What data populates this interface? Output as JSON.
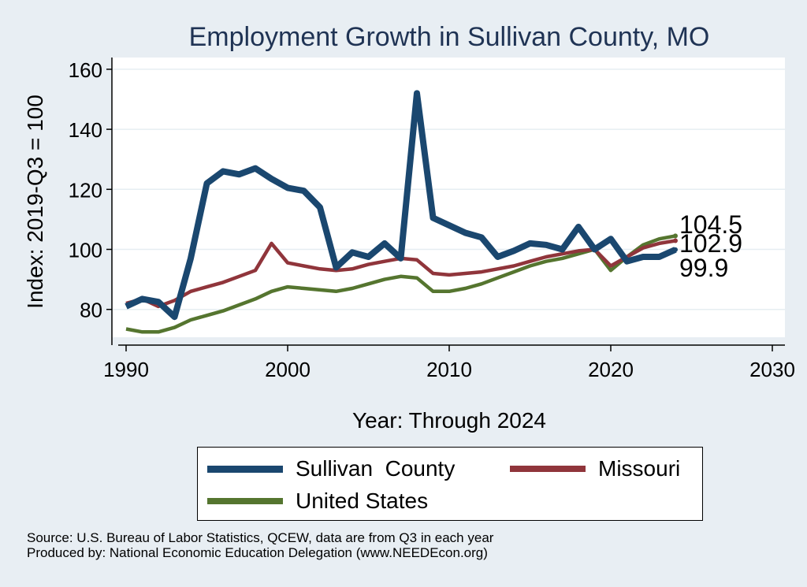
{
  "chart_data": {
    "type": "line",
    "title": "Employment Growth in Sullivan County, MO",
    "xlabel": "Year: Through 2024",
    "ylabel": "Index: 2019-Q3 = 100",
    "xlim": [
      1990,
      2030
    ],
    "ylim": [
      70,
      165
    ],
    "xticks": [
      1990,
      2000,
      2010,
      2020,
      2030
    ],
    "yticks": [
      80,
      100,
      120,
      140,
      160
    ],
    "x": [
      1990,
      1991,
      1992,
      1993,
      1994,
      1995,
      1996,
      1997,
      1998,
      1999,
      2000,
      2001,
      2002,
      2003,
      2004,
      2005,
      2006,
      2007,
      2008,
      2009,
      2010,
      2011,
      2012,
      2013,
      2014,
      2015,
      2016,
      2017,
      2018,
      2019,
      2020,
      2021,
      2022,
      2023,
      2024
    ],
    "series": [
      {
        "name": "Sullivan  County",
        "color": "#1a476f",
        "end_label": "99.9",
        "values": [
          81,
          83.5,
          82.5,
          77.5,
          97,
          122,
          126,
          125,
          127,
          123.5,
          120.5,
          119.5,
          114,
          94,
          99,
          97.5,
          102,
          97,
          152,
          110.5,
          108,
          105.5,
          104,
          97.5,
          99.5,
          102,
          101.5,
          100,
          107.5,
          100,
          103.5,
          96,
          97.5,
          97.5,
          99.9
        ]
      },
      {
        "name": "Missouri",
        "color": "#90353b",
        "end_label": "102.9",
        "values": [
          82,
          83.5,
          81,
          83,
          86,
          87.5,
          89,
          91,
          93,
          102,
          95.5,
          94.5,
          93.5,
          93,
          93.5,
          95,
          96,
          97,
          96.5,
          92,
          91.5,
          92,
          92.5,
          93.5,
          94.5,
          96,
          97.5,
          98.5,
          99.5,
          100,
          94.5,
          97.5,
          100.5,
          102,
          102.9
        ]
      },
      {
        "name": "United States",
        "color": "#55752f",
        "end_label": "104.5",
        "values": [
          73.5,
          72.5,
          72.5,
          74,
          76.5,
          78,
          79.5,
          81.5,
          83.5,
          86,
          87.5,
          87,
          86.5,
          86,
          87,
          88.5,
          90,
          91,
          90.5,
          86,
          86,
          87,
          88.5,
          90.5,
          92.5,
          94.5,
          96,
          97,
          98.5,
          100,
          93,
          97.5,
          101.5,
          103.5,
          104.5
        ]
      }
    ]
  },
  "legend": {
    "items": [
      {
        "label": "Sullivan  County",
        "color": "#1a476f"
      },
      {
        "label": "Missouri",
        "color": "#90353b"
      },
      {
        "label": "United States",
        "color": "#55752f"
      }
    ]
  },
  "source": {
    "line1": "Source: U.S. Bureau of Labor Statistics, QCEW, data are from Q3 in each year",
    "line2": "Produced by: National Economic Education Delegation (www.NEEDEcon.org)"
  },
  "colors": {
    "background": "#e8eef3",
    "plot_bg": "#ffffff",
    "grid": "#e6eef2",
    "title": "#1f3354"
  }
}
